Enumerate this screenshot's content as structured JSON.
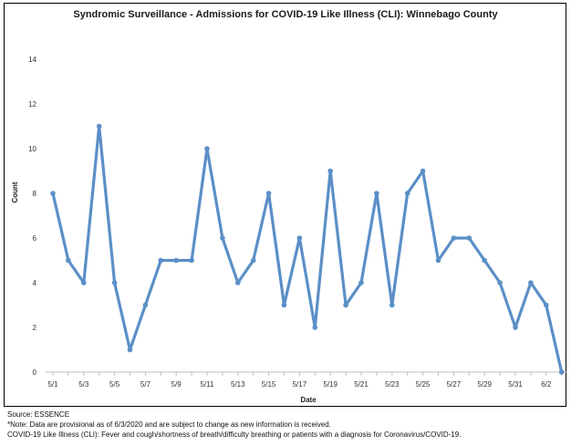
{
  "chart_data": {
    "type": "line",
    "title": "Syndromic Surveillance - Admissions for COVID-19 Like Illness (CLI): Winnebago County",
    "xlabel": "Date",
    "ylabel": "Count",
    "ylim": [
      0,
      14
    ],
    "yticks": [
      0,
      2,
      4,
      6,
      8,
      10,
      12,
      14
    ],
    "grid": false,
    "legend": "none",
    "line_color": "#5b8fc7",
    "x": [
      "5/1",
      "5/2",
      "5/3",
      "5/4",
      "5/5",
      "5/6",
      "5/7",
      "5/8",
      "5/9",
      "5/10",
      "5/11",
      "5/12",
      "5/13",
      "5/14",
      "5/15",
      "5/16",
      "5/17",
      "5/18",
      "5/19",
      "5/20",
      "5/21",
      "5/22",
      "5/23",
      "5/24",
      "5/25",
      "5/26",
      "5/27",
      "5/28",
      "5/29",
      "5/30",
      "5/31",
      "6/1",
      "6/2",
      "6/3"
    ],
    "xtick_labels": [
      "5/1",
      "5/3",
      "5/5",
      "5/7",
      "5/9",
      "5/11",
      "5/13",
      "5/15",
      "5/17",
      "5/19",
      "5/21",
      "5/23",
      "5/25",
      "5/27",
      "5/29",
      "5/31",
      "6/2"
    ],
    "series": [
      {
        "values": [
          8,
          5,
          4,
          11,
          4,
          1,
          3,
          5,
          5,
          5,
          10,
          6,
          4,
          5,
          8,
          3,
          6,
          2,
          9,
          3,
          4,
          8,
          3,
          8,
          9,
          5,
          6,
          6,
          5,
          4,
          2,
          4,
          3,
          0
        ]
      }
    ]
  },
  "footer": {
    "source": "Source: ESSENCE",
    "note": "*Note: Data are provisional as of 6/3/2020 and are subject to change as new information is received.",
    "definition": "COVID-19 Like Illness (CLI): Fever and cough/shortness of breath/difficulty breathing or patients with a diagnosis for Coronavirus/COVID-19."
  }
}
